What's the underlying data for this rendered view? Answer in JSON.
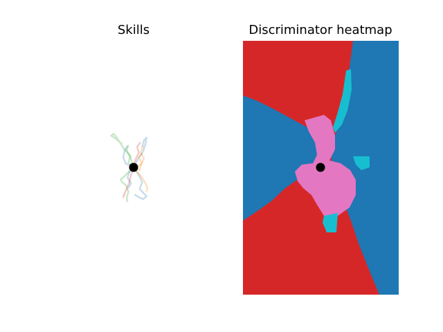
{
  "chart_data": [
    {
      "type": "line",
      "title": "Skills",
      "axes_visible": false,
      "series_colors": [
        "#1f77b4",
        "#ff7f0e",
        "#2ca02c",
        "#d62728"
      ],
      "series_alpha": 0.25,
      "origin": [
        0,
        0
      ],
      "origin_color": "#000000",
      "xlim": [
        -4,
        4
      ],
      "ylim": [
        -6,
        6
      ],
      "series": [
        {
          "color": "#2ca02c",
          "points": [
            [
              0,
              0
            ],
            [
              -0.4,
              1.2
            ],
            [
              -1.2,
              2.1
            ],
            [
              -1.8,
              3.0
            ],
            [
              -2.3,
              3.6
            ],
            [
              -2.6,
              3.4
            ],
            [
              -2.1,
              3.1
            ],
            [
              -1.6,
              2.7
            ],
            [
              -1.3,
              2.5
            ]
          ]
        },
        {
          "color": "#1f77b4",
          "points": [
            [
              0,
              0
            ],
            [
              0.5,
              0.9
            ],
            [
              1.1,
              1.7
            ],
            [
              1.4,
              2.6
            ],
            [
              1.5,
              3.2
            ],
            [
              1.2,
              2.9
            ],
            [
              1.0,
              2.2
            ]
          ]
        },
        {
          "color": "#1f77b4",
          "points": [
            [
              0,
              0
            ],
            [
              0.6,
              -0.8
            ],
            [
              1.0,
              -1.6
            ],
            [
              0.7,
              -2.3
            ],
            [
              1.2,
              -2.8
            ],
            [
              1.5,
              -3.1
            ],
            [
              1.1,
              -3.4
            ],
            [
              0.6,
              -3.2
            ],
            [
              0.1,
              -2.9
            ]
          ]
        },
        {
          "color": "#ff7f0e",
          "points": [
            [
              0,
              0
            ],
            [
              0.5,
              -0.6
            ],
            [
              1.0,
              -1.1
            ],
            [
              1.3,
              -1.6
            ],
            [
              1.6,
              -2.2
            ],
            [
              1.5,
              -2.6
            ]
          ]
        },
        {
          "color": "#d62728",
          "points": [
            [
              0,
              0
            ],
            [
              -0.3,
              -0.8
            ],
            [
              -0.5,
              -1.6
            ],
            [
              -0.8,
              -2.3
            ],
            [
              -1.1,
              -2.9
            ],
            [
              -1.2,
              -3.2
            ],
            [
              -1.0,
              -2.8
            ]
          ]
        },
        {
          "color": "#2ca02c",
          "points": [
            [
              0,
              0
            ],
            [
              -0.7,
              -0.6
            ],
            [
              -1.1,
              -1.0
            ],
            [
              -1.5,
              -1.3
            ],
            [
              -1.3,
              -1.6
            ],
            [
              -0.9,
              -1.9
            ],
            [
              -0.6,
              -2.6
            ],
            [
              -0.8,
              -3.3
            ],
            [
              -0.7,
              -3.7
            ]
          ]
        },
        {
          "color": "#1f77b4",
          "points": [
            [
              0,
              0
            ],
            [
              -0.9,
              0.4
            ],
            [
              -1.2,
              1.1
            ],
            [
              -1.0,
              1.9
            ],
            [
              -0.7,
              2.3
            ]
          ]
        },
        {
          "color": "#ff7f0e",
          "points": [
            [
              0,
              0
            ],
            [
              0.9,
              0.3
            ],
            [
              1.2,
              1.0
            ],
            [
              0.8,
              1.6
            ],
            [
              1.1,
              2.3
            ]
          ]
        },
        {
          "color": "#d62728",
          "points": [
            [
              0,
              0
            ],
            [
              0.2,
              0.8
            ],
            [
              0.6,
              1.6
            ],
            [
              0.4,
              2.2
            ],
            [
              0.8,
              2.7
            ]
          ]
        },
        {
          "color": "#1f77b4",
          "points": [
            [
              0,
              0
            ],
            [
              -0.5,
              -0.5
            ],
            [
              -0.7,
              -1.1
            ],
            [
              -0.3,
              -1.7
            ],
            [
              -0.6,
              -2.2
            ]
          ]
        },
        {
          "color": "#2ca02c",
          "points": [
            [
              0,
              0
            ],
            [
              -0.6,
              0.5
            ],
            [
              -0.4,
              1.2
            ],
            [
              -0.8,
              1.8
            ],
            [
              -0.6,
              2.4
            ]
          ]
        },
        {
          "color": "#ff7f0e",
          "points": [
            [
              0,
              0
            ],
            [
              0.7,
              -0.3
            ],
            [
              0.9,
              0.5
            ],
            [
              0.6,
              1.1
            ],
            [
              1.0,
              1.5
            ]
          ]
        }
      ]
    },
    {
      "type": "heatmap",
      "title": "Discriminator heatmap",
      "axes_visible": false,
      "class_colors": {
        "red": "#d62728",
        "blue": "#1f77b4",
        "pink": "#e377c2",
        "cyan": "#17becf"
      },
      "origin": [
        0,
        0
      ],
      "origin_color": "#000000",
      "xlim": [
        -4,
        4
      ],
      "ylim": [
        -6,
        6
      ]
    }
  ]
}
